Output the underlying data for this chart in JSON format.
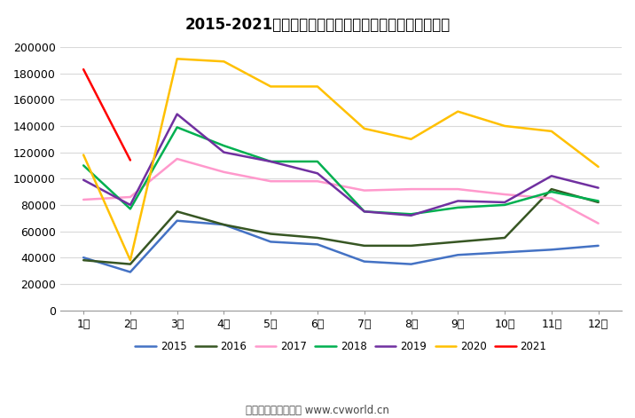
{
  "title": "2015-2021年我国重卡市场销量月度走势图（单位：辆）",
  "footer": "制图：第一商用车网 www.cvworld.cn",
  "months": [
    "1月",
    "2月",
    "3月",
    "4月",
    "5月",
    "6月",
    "7月",
    "8月",
    "9月",
    "10月",
    "11月",
    "12月"
  ],
  "series": [
    {
      "label": "2015",
      "color": "#4472C4",
      "data": [
        40000,
        29000,
        68000,
        65000,
        52000,
        50000,
        37000,
        35000,
        42000,
        44000,
        46000,
        49000
      ]
    },
    {
      "label": "2016",
      "color": "#375623",
      "data": [
        38000,
        35000,
        75000,
        65000,
        58000,
        55000,
        49000,
        49000,
        52000,
        55000,
        92000,
        82000
      ]
    },
    {
      "label": "2017",
      "color": "#FF99CC",
      "data": [
        84000,
        86000,
        115000,
        105000,
        98000,
        98000,
        91000,
        92000,
        92000,
        88000,
        85000,
        66000
      ]
    },
    {
      "label": "2018",
      "color": "#00B050",
      "data": [
        110000,
        77000,
        139000,
        125000,
        113000,
        113000,
        75000,
        73000,
        78000,
        80000,
        90000,
        83000
      ]
    },
    {
      "label": "2019",
      "color": "#7030A0",
      "data": [
        99000,
        80000,
        149000,
        120000,
        113000,
        104000,
        75000,
        72000,
        83000,
        82000,
        102000,
        93000
      ]
    },
    {
      "label": "2020",
      "color": "#FFC000",
      "data": [
        118000,
        38000,
        191000,
        189000,
        170000,
        170000,
        138000,
        130000,
        151000,
        140000,
        136000,
        109000
      ]
    },
    {
      "label": "2021",
      "color": "#FF0000",
      "data": [
        183000,
        114000,
        null,
        null,
        null,
        null,
        null,
        null,
        null,
        null,
        null,
        null
      ]
    }
  ],
  "ylim": [
    0,
    200000
  ],
  "yticks": [
    0,
    20000,
    40000,
    60000,
    80000,
    100000,
    120000,
    140000,
    160000,
    180000,
    200000
  ],
  "bg_color": "#FFFFFF",
  "plot_bg_color": "#FFFFFF"
}
